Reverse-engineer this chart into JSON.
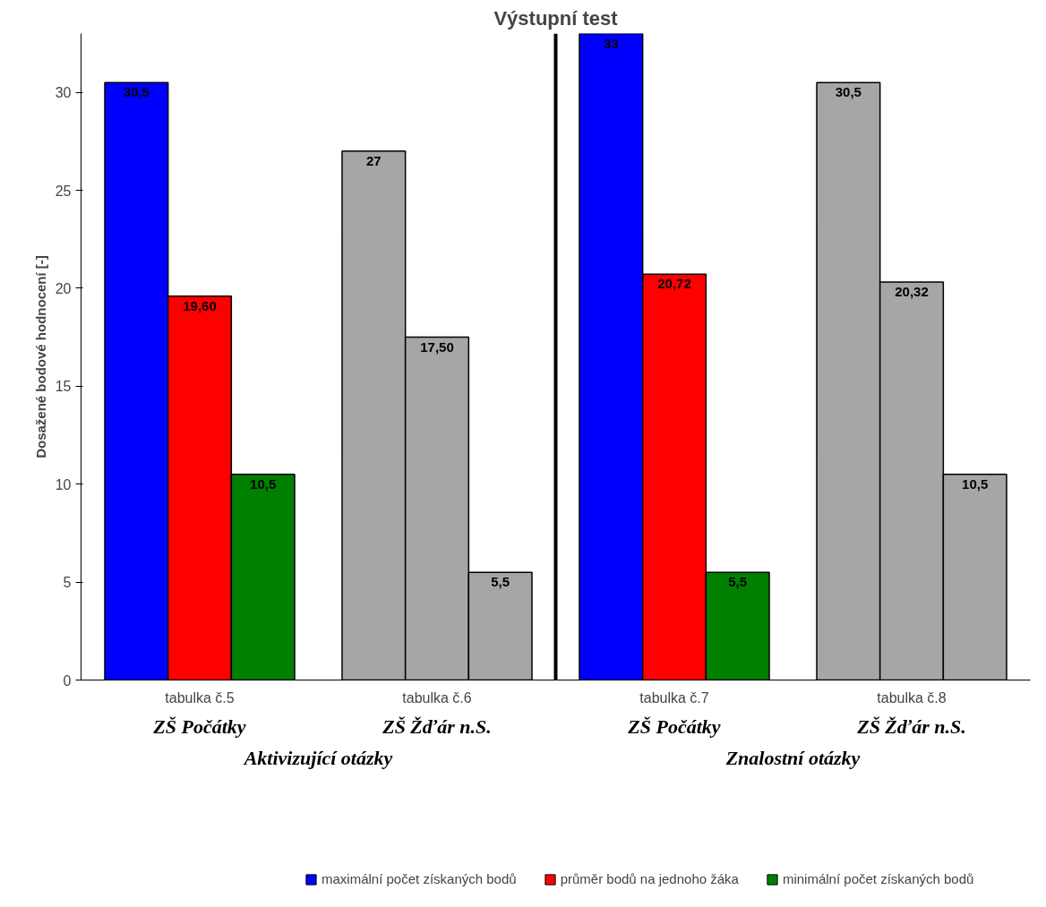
{
  "chart_data": {
    "type": "bar",
    "title": "Výstupní test",
    "ylabel": "Dosažené bodové hodnocení [-]",
    "categories": [
      "tabulka č.5",
      "tabulka č.6",
      "tabulka č.7",
      "tabulka č.8"
    ],
    "series": [
      {
        "name": "maximální počet získaných bodů",
        "color": "#0000ff",
        "colors": [
          "#0000ff",
          "#a6a6a6",
          "#0000ff",
          "#a6a6a6"
        ],
        "values": [
          30.5,
          27,
          33,
          30.5
        ],
        "value_labels": [
          "30,5",
          "27",
          "33",
          "30,5"
        ]
      },
      {
        "name": "průměr bodů na jednoho žáka",
        "color": "#ff0000",
        "colors": [
          "#ff0000",
          "#a6a6a6",
          "#ff0000",
          "#a6a6a6"
        ],
        "values": [
          19.6,
          17.5,
          20.72,
          20.32
        ],
        "value_labels": [
          "19,60",
          "17,50",
          "20,72",
          "20,32"
        ]
      },
      {
        "name": "minimální počet získaných bodů",
        "color": "#008000",
        "colors": [
          "#008000",
          "#a6a6a6",
          "#008000",
          "#a6a6a6"
        ],
        "values": [
          10.5,
          5.5,
          5.5,
          10.5
        ],
        "value_labels": [
          "10,5",
          "5,5",
          "5,5",
          "10,5"
        ]
      }
    ],
    "annotations": [
      "ZŠ Počátky",
      "ZŠ Žďár n.S.",
      "ZŠ Počátky",
      "ZŠ Žďár n.S.",
      "Aktivizující otázky",
      "Znalostní otázky"
    ],
    "ylim": [
      0,
      33
    ],
    "yticks": [
      0,
      5,
      10,
      15,
      20,
      25,
      30
    ],
    "grid": false,
    "legend": "bottom"
  }
}
